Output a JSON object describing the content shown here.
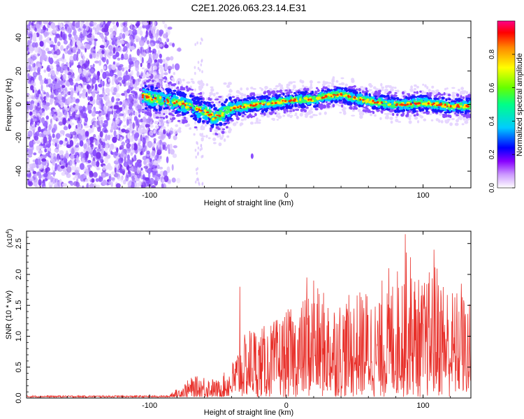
{
  "figure_title": "C2E1.2026.063.23.14.E31",
  "chart_data": [
    {
      "type": "heatmap",
      "title": "C2E1.2026.063.23.14.E31",
      "xlabel": "Height of straight line (km)",
      "ylabel": "Frequency (Hz)",
      "xlim": [
        -190,
        135
      ],
      "ylim": [
        -50,
        50
      ],
      "x_ticks": [
        -100,
        0,
        100
      ],
      "x_tick_labels": [
        "-100",
        "0",
        "100"
      ],
      "y_ticks": [
        -40,
        -20,
        0,
        20,
        40
      ],
      "y_tick_labels": [
        "-40",
        "-20",
        "0",
        "20",
        "40"
      ],
      "colorbar": {
        "label": "Normalized spectral amplitude",
        "range": [
          0,
          1
        ],
        "ticks": [
          0.0,
          0.2,
          0.4,
          0.6,
          0.8
        ],
        "tick_labels": [
          "0.0",
          "0.2",
          "0.4",
          "0.6",
          "0.8"
        ],
        "colors": [
          "#ffffff",
          "#cc99ff",
          "#8800ff",
          "#0000ff",
          "#00ccff",
          "#00ff88",
          "#66ff00",
          "#ffff00",
          "#ff8800",
          "#ff0000",
          "#ff0088"
        ]
      },
      "noise_region_xlim": [
        -190,
        -95
      ],
      "ridge": {
        "x": [
          -105,
          -95,
          -85,
          -75,
          -65,
          -58,
          -52,
          -45,
          -38,
          -30,
          -20,
          -10,
          0,
          10,
          20,
          30,
          40,
          50,
          60,
          70,
          80,
          90,
          100,
          110,
          120,
          130
        ],
        "frequency": [
          5,
          3,
          2,
          0,
          -3,
          -5,
          -8,
          -5,
          -2,
          -1,
          0,
          1,
          2,
          3,
          3,
          5,
          6,
          4,
          2,
          1,
          0,
          0,
          1,
          0,
          -1,
          -1
        ]
      }
    },
    {
      "type": "line",
      "xlabel": "Height of straight line (km)",
      "ylabel": "SNR (10 * v/v)",
      "y_scale_label": "(x10",
      "y_scale_exp": "4",
      "y_scale_close": ")",
      "xlim": [
        -190,
        135
      ],
      "ylim": [
        0,
        2.7
      ],
      "x_ticks": [
        -100,
        0,
        100
      ],
      "x_tick_labels": [
        "-100",
        "0",
        "100"
      ],
      "y_ticks": [
        0.0,
        0.5,
        1.0,
        1.5,
        2.0,
        2.5
      ],
      "y_tick_labels": [
        "0.0",
        "0.5",
        "1.0",
        "1.5",
        "2.0",
        "2.5"
      ],
      "series": [
        {
          "name": "SNR",
          "color": "#e8302a",
          "envelope_x": [
            -190,
            -100,
            -90,
            -80,
            -70,
            -60,
            -50,
            -40,
            -35,
            -30,
            -25,
            -20,
            -10,
            0,
            10,
            15,
            20,
            30,
            40,
            50,
            60,
            70,
            75,
            80,
            85,
            90,
            95,
            100,
            105,
            110,
            120,
            130,
            135
          ],
          "envelope_y": [
            0.05,
            0.05,
            0.08,
            0.15,
            0.35,
            0.4,
            0.3,
            0.6,
            0.9,
            1.1,
            1.3,
            1.2,
            1.3,
            1.5,
            1.6,
            1.8,
            1.9,
            1.8,
            1.7,
            1.8,
            1.9,
            1.6,
            2.0,
            2.2,
            2.4,
            2.6,
            2.1,
            2.0,
            2.2,
            2.35,
            1.9,
            1.8,
            1.6
          ],
          "highlights": [
            {
              "x": -34,
              "y": 1.8
            },
            {
              "x": 15,
              "y": 1.95
            },
            {
              "x": 20,
              "y": 1.9
            },
            {
              "x": 70,
              "y": 1.9
            },
            {
              "x": 75,
              "y": 2.1
            },
            {
              "x": 87,
              "y": 2.65
            },
            {
              "x": 108,
              "y": 2.4
            },
            {
              "x": 128,
              "y": 1.85
            }
          ]
        }
      ]
    }
  ]
}
